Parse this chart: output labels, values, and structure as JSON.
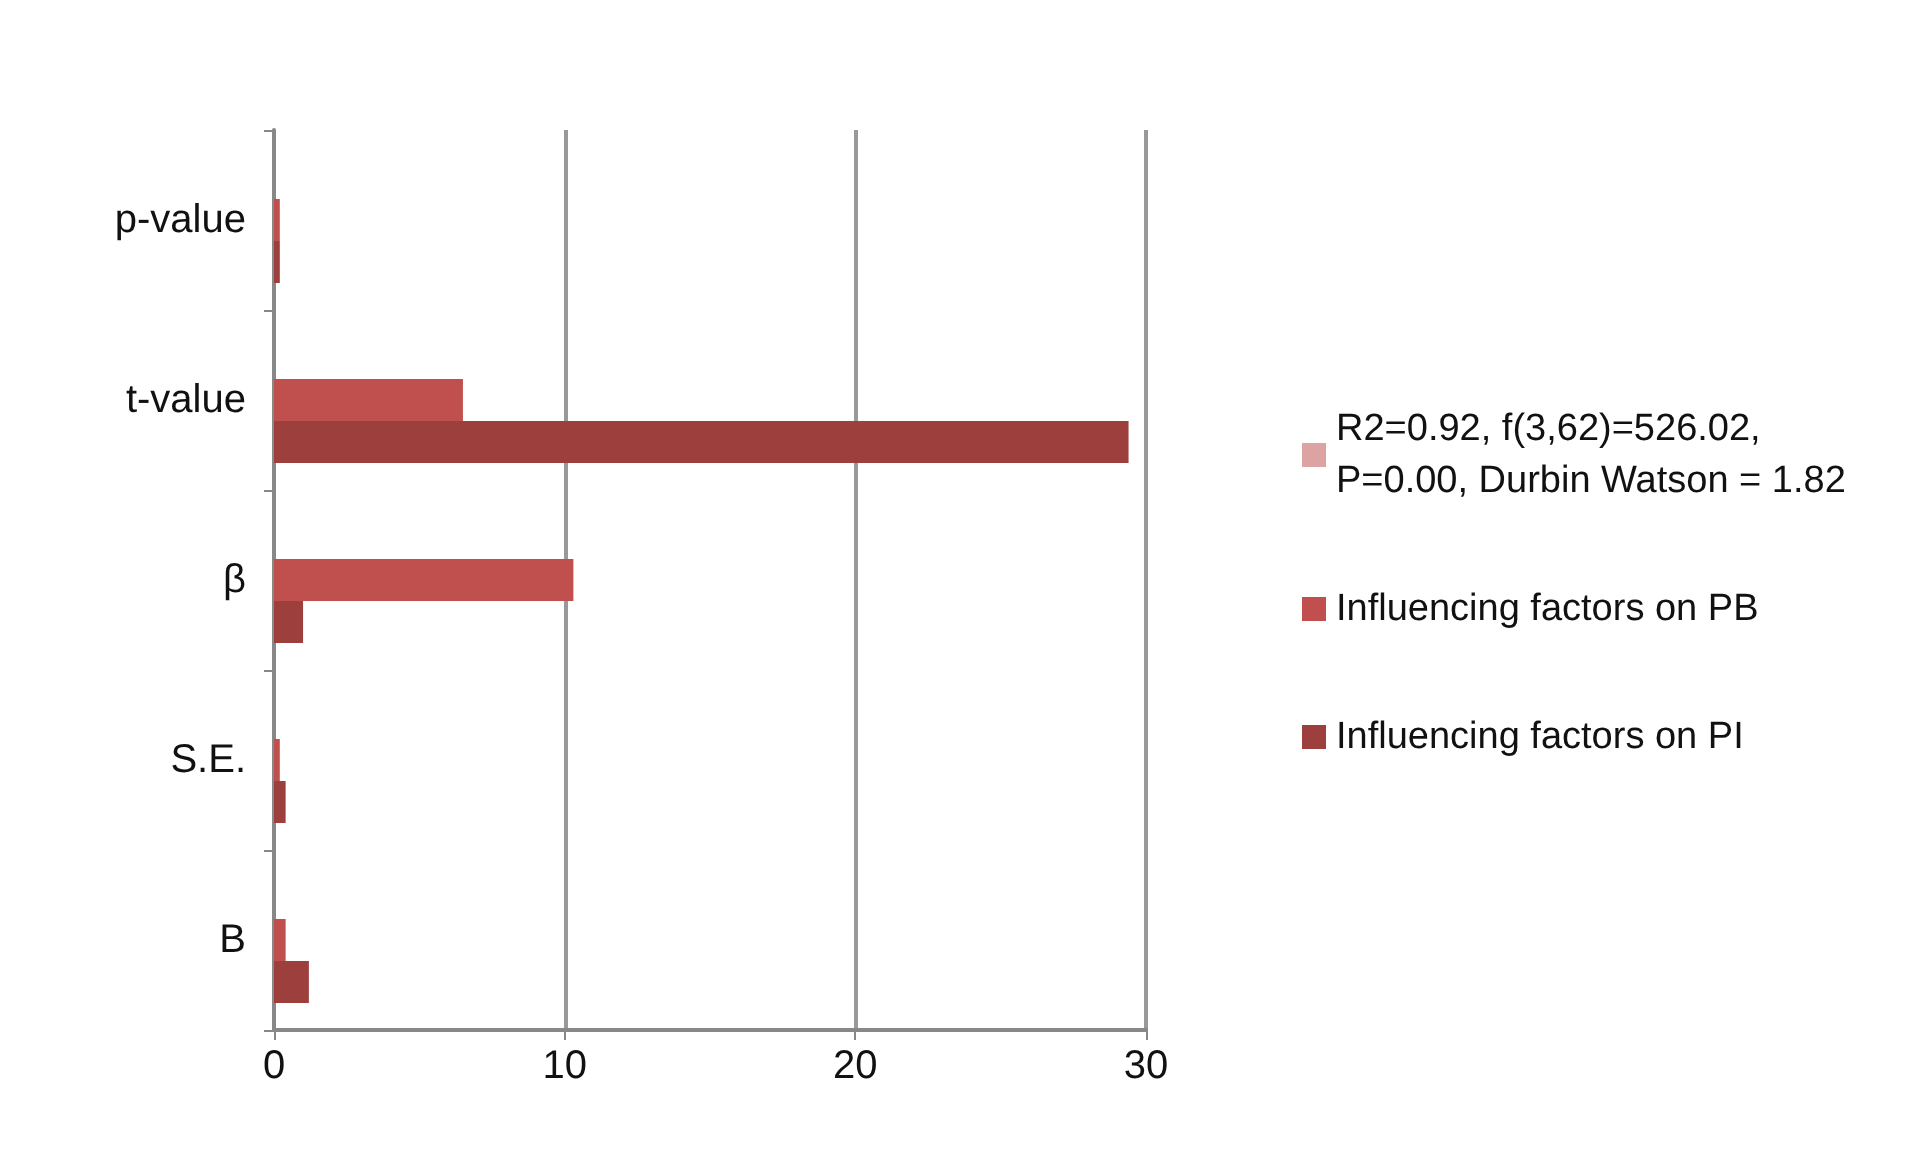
{
  "chart_data": {
    "type": "bar",
    "orientation": "horizontal",
    "categories": [
      "p-value",
      "t-value",
      "β",
      "S.E.",
      "B"
    ],
    "series": [
      {
        "name": "R2=0.92, f(3,62)=526.02, P=0.00, Durbin Watson = 1.82",
        "color": "#dba4a3",
        "values": [
          null,
          null,
          null,
          null,
          null
        ]
      },
      {
        "name": "Influencing factors on PB",
        "color": "#c0504d",
        "values": [
          0.2,
          6.5,
          10.3,
          0.2,
          0.4
        ]
      },
      {
        "name": "Influencing factors on PI",
        "color": "#9c3f3d",
        "values": [
          0.2,
          29.4,
          1,
          0.4,
          1.2
        ]
      }
    ],
    "xlim": [
      0,
      30
    ],
    "xticks": [
      0,
      10,
      20,
      30
    ],
    "grid": "x",
    "legend": "right"
  }
}
